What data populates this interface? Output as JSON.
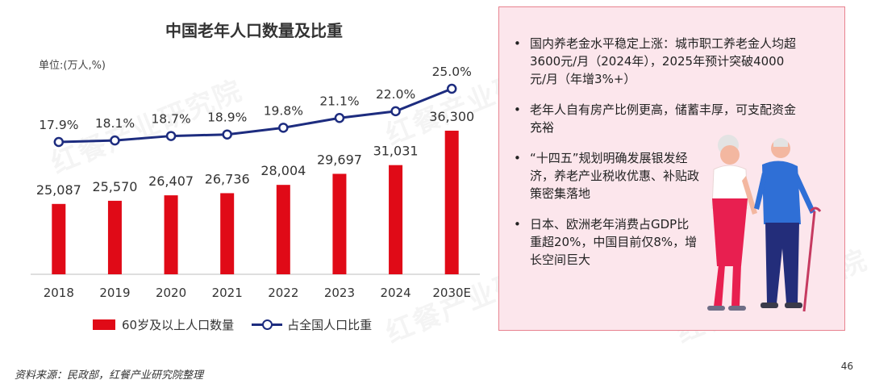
{
  "chart_data": {
    "type": "bar",
    "title": "中国老年人口数量及比重",
    "unit_label": "单位:(万人,%)",
    "categories": [
      "2018",
      "2019",
      "2020",
      "2021",
      "2022",
      "2023",
      "2024",
      "2030E"
    ],
    "series": [
      {
        "name": "60岁及以上人口数量",
        "type": "bar",
        "values": [
          25087,
          25570,
          26407,
          26736,
          28004,
          29697,
          31031,
          36300
        ],
        "labels": [
          "25,087",
          "25,570",
          "26,407",
          "26,736",
          "28,004",
          "29,697",
          "31,031",
          "36,300"
        ],
        "color": "#e00a17"
      },
      {
        "name": "占全国人口比重",
        "type": "line",
        "values": [
          17.9,
          18.1,
          18.7,
          18.9,
          19.8,
          21.1,
          22.0,
          25.0
        ],
        "labels": [
          "17.9%",
          "18.1%",
          "18.7%",
          "18.9%",
          "19.8%",
          "21.1%",
          "22.0%",
          "25.0%"
        ],
        "color": "#1d2c7f"
      }
    ],
    "grid": false,
    "legend_position": "bottom"
  },
  "panel": {
    "bullets": [
      "国内养老金水平稳定上涨：城市职工养老金人均超3600元/月（2024年），2025年预计突破4000元/月（年增3%+）",
      "老年人自有房产比例更高，储蓄丰厚，可支配资金充裕",
      "“十四五”规划明确发展银发经济，养老产业税收优惠、补贴政策密集落地",
      "日本、欧洲老年消费占GDP比重超20%，中国目前仅8%，增长空间巨大"
    ]
  },
  "footer": {
    "source": "资料来源：民政部，红餐产业研究院整理",
    "page_number": "46"
  },
  "watermark": "红餐产业研究院"
}
